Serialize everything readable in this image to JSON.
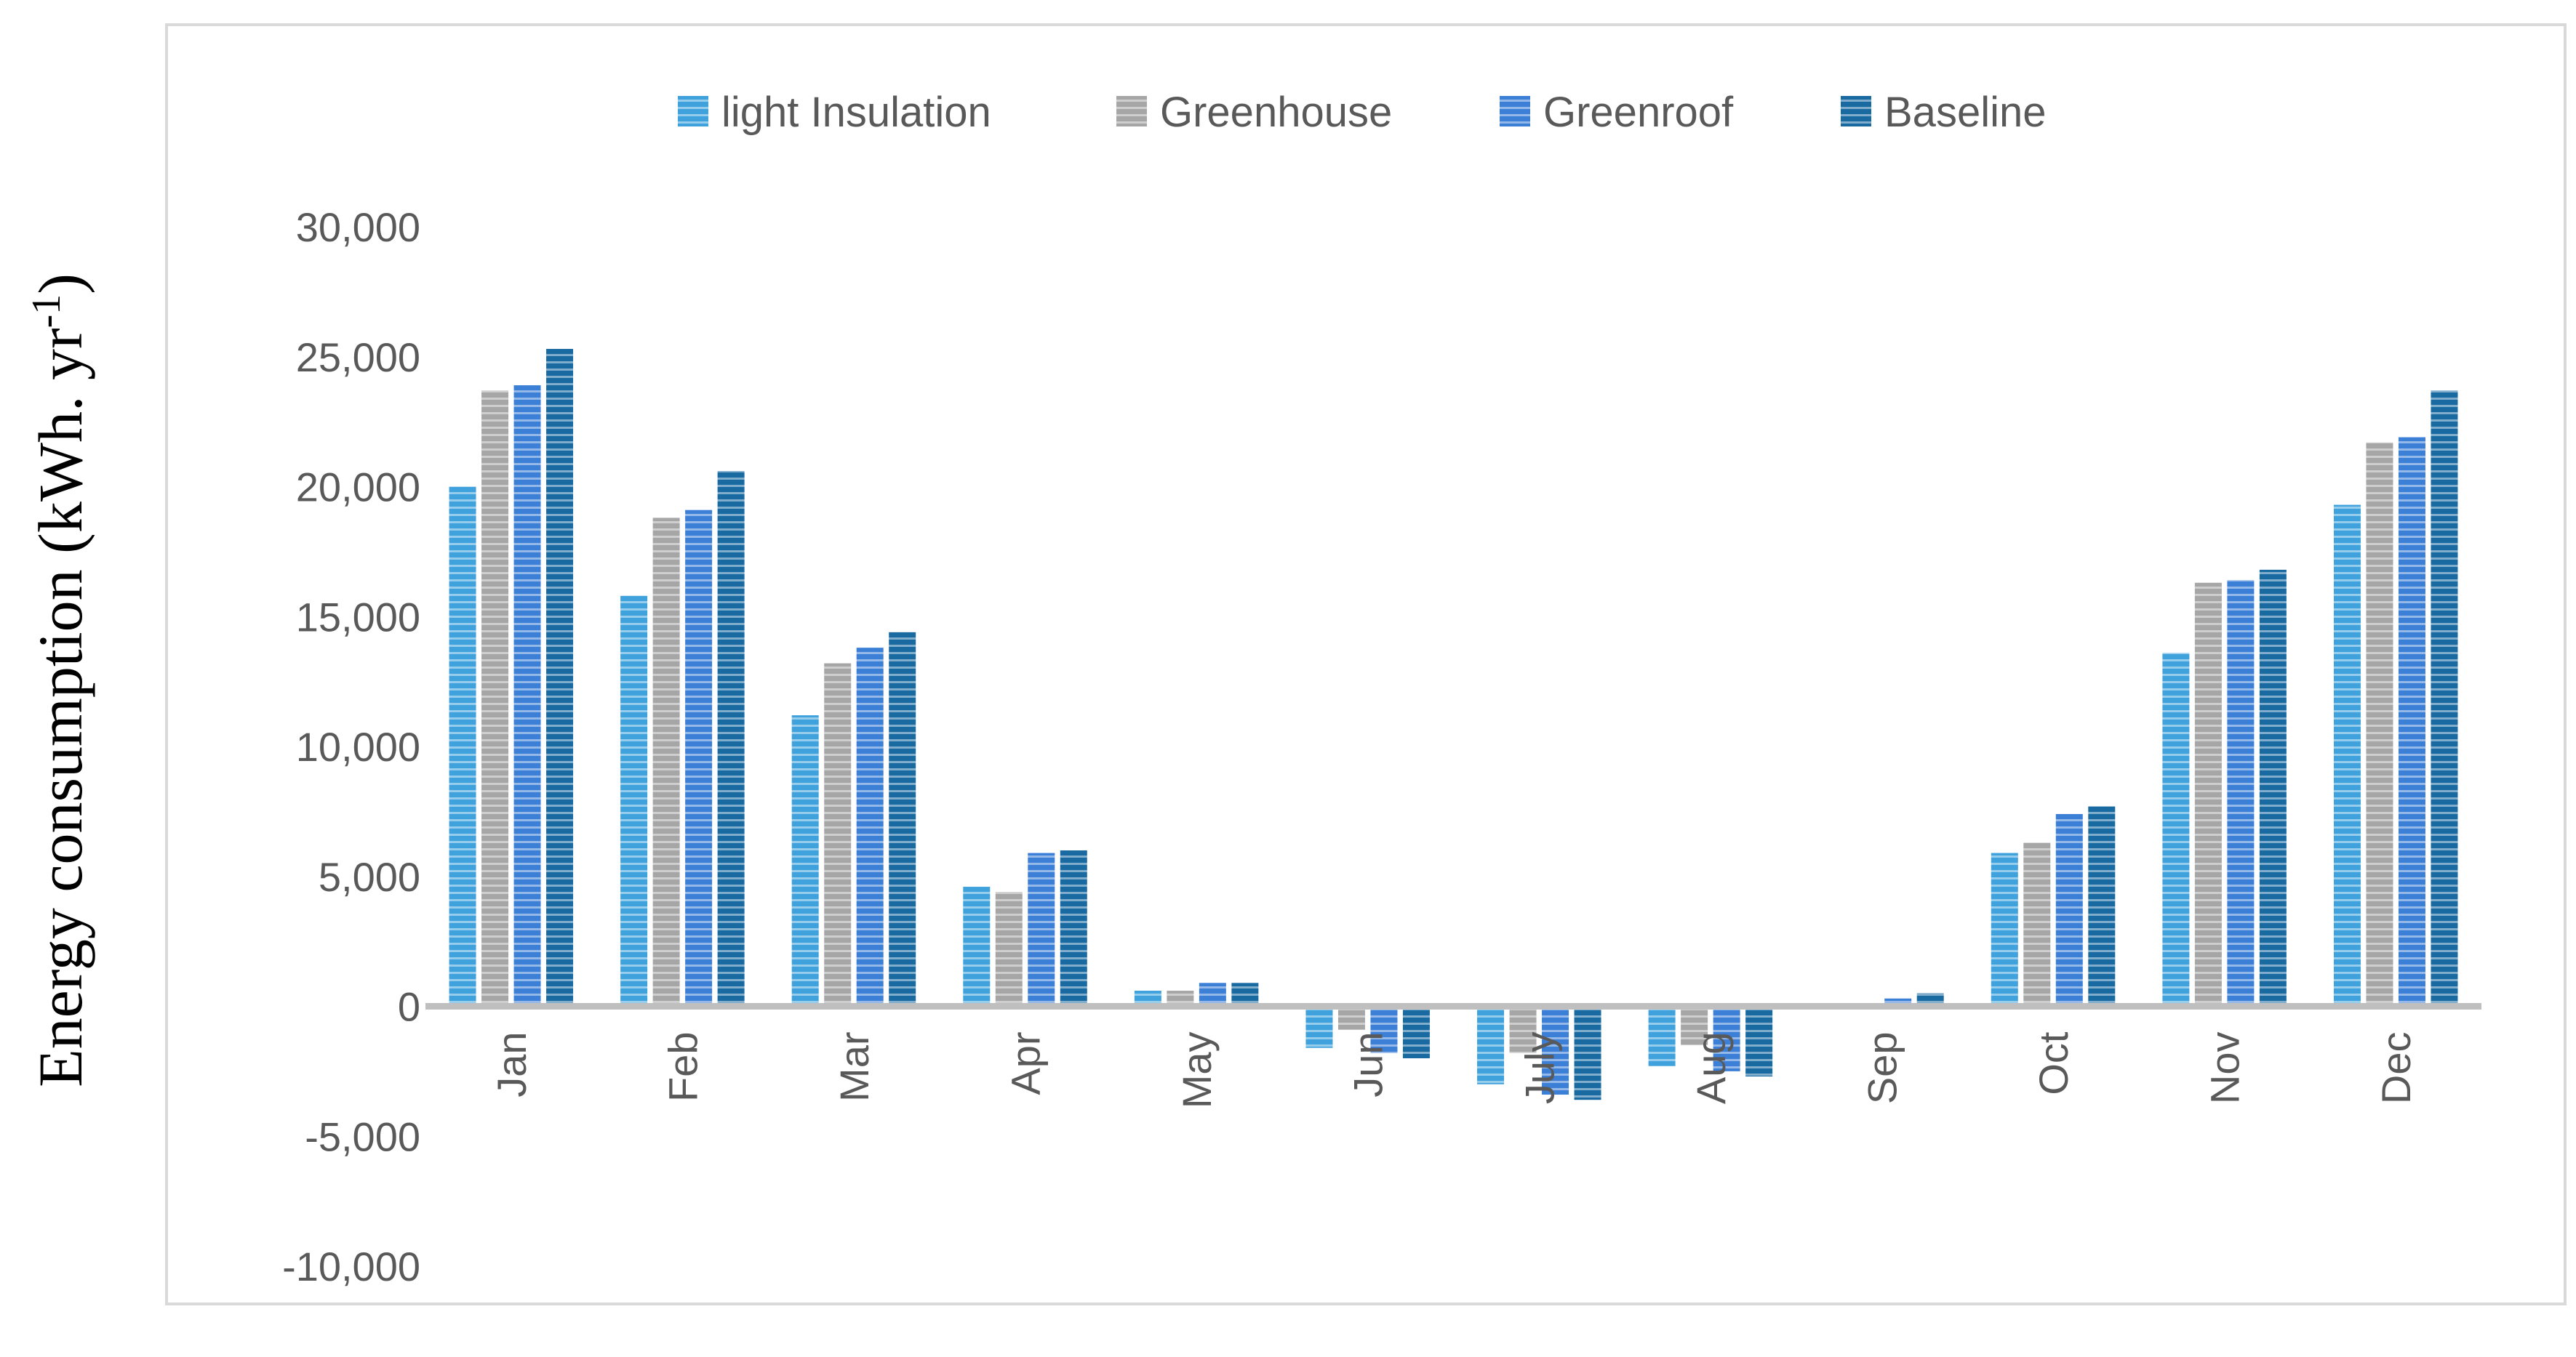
{
  "chart_data": {
    "type": "bar",
    "title": "",
    "xlabel": "",
    "ylabel": "Energy consumption (kWh. yr",
    "ylabel_superscript": "-1",
    "ylabel_suffix": ")",
    "categories": [
      "Jan",
      "Feb",
      "Mar",
      "Apr",
      "May",
      "Jun",
      "July",
      "Aug",
      "Sep",
      "Oct",
      "Nov",
      "Dec"
    ],
    "series": [
      {
        "name": "light Insulation",
        "color": "#3fa2dd",
        "values": [
          20000,
          15800,
          11200,
          4600,
          600,
          -1600,
          -3000,
          -2300,
          100,
          5900,
          13600,
          19300
        ]
      },
      {
        "name": "Greenhouse",
        "color": "#a6a6a6",
        "values": [
          23700,
          18800,
          13200,
          4400,
          600,
          -900,
          -1800,
          -1500,
          0,
          6300,
          16300,
          21700
        ]
      },
      {
        "name": "Greenroof",
        "color": "#3c7fd6",
        "values": [
          23900,
          19100,
          13800,
          5900,
          900,
          -1800,
          -3400,
          -2500,
          300,
          7400,
          16400,
          21900
        ]
      },
      {
        "name": "Baseline",
        "color": "#1a6aa2",
        "values": [
          25300,
          20600,
          14400,
          6000,
          900,
          -2000,
          -3600,
          -2700,
          500,
          7700,
          16800,
          23700
        ]
      }
    ],
    "ylim": [
      -10000,
      30000
    ],
    "yticks": [
      -10000,
      -5000,
      0,
      5000,
      10000,
      15000,
      20000,
      25000,
      30000
    ],
    "ytick_labels": [
      "-10,000",
      "-5,000",
      "0",
      "5,000",
      "10,000",
      "15,000",
      "20,000",
      "25,000",
      "30,000"
    ],
    "grid": false,
    "legend_position": "top",
    "bar_pattern": "horizontal-stripes"
  }
}
